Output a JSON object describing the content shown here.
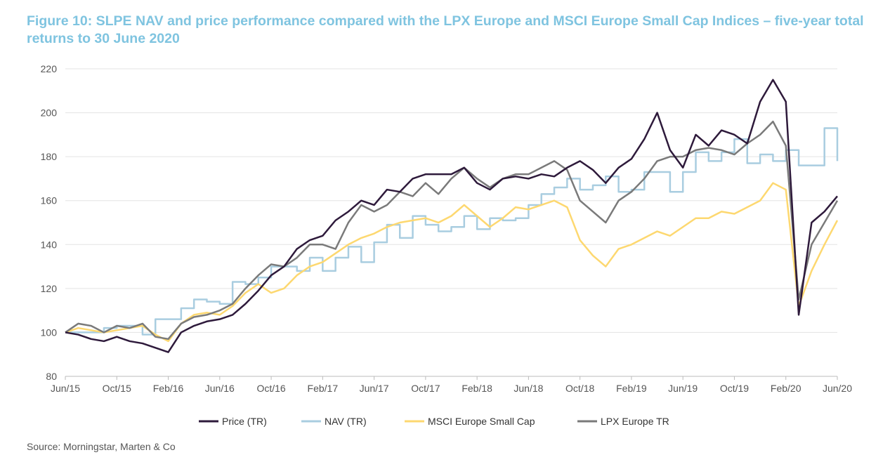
{
  "chart_data": {
    "type": "line",
    "title": "Figure 10: SLPE NAV and price performance compared with the LPX Europe and MSCI Europe Small Cap Indices – five-year total returns to 30 June 2020",
    "source": "Source: Morningstar, Marten & Co",
    "xlabel": "",
    "ylabel": "",
    "ylim": [
      80,
      220
    ],
    "yticks": [
      "80",
      "100",
      "120",
      "140",
      "160",
      "180",
      "200",
      "220"
    ],
    "xticks": [
      "Jun/15",
      "Oct/15",
      "Feb/16",
      "Jun/16",
      "Oct/16",
      "Feb/17",
      "Jun/17",
      "Oct/17",
      "Feb/18",
      "Jun/18",
      "Oct/18",
      "Feb/19",
      "Jun/19",
      "Oct/19",
      "Feb/20",
      "Jun/20"
    ],
    "x_start": "Jun/15",
    "x_step": "monthly",
    "grid": "horizontal",
    "legend": "bottom",
    "series": [
      {
        "name": "Price (TR)",
        "color": "#2e1a3b",
        "style": "line",
        "values": [
          100,
          99,
          97,
          96,
          98,
          96,
          95,
          93,
          91,
          100,
          103,
          105,
          106,
          108,
          113,
          119,
          126,
          130,
          138,
          142,
          144,
          151,
          155,
          160,
          158,
          165,
          164,
          170,
          172,
          172,
          172,
          175,
          168,
          165,
          170,
          171,
          170,
          172,
          171,
          175,
          178,
          174,
          168,
          175,
          179,
          188,
          200,
          183,
          175,
          190,
          185,
          192,
          190,
          186,
          205,
          215,
          205,
          108,
          150,
          155,
          162
        ]
      },
      {
        "name": "NAV (TR)",
        "color": "#a9cde0",
        "style": "step",
        "values": [
          100,
          100,
          100,
          102,
          103,
          103,
          99,
          106,
          106,
          111,
          115,
          114,
          113,
          123,
          122,
          125,
          130,
          130,
          128,
          134,
          128,
          134,
          139,
          132,
          141,
          149,
          143,
          153,
          149,
          146,
          148,
          153,
          147,
          152,
          151,
          152,
          158,
          163,
          166,
          170,
          165,
          167,
          171,
          164,
          165,
          173,
          173,
          164,
          173,
          182,
          178,
          182,
          188,
          177,
          181,
          178,
          183,
          176,
          176,
          193,
          178
        ]
      },
      {
        "name": "MSCI Europe Small Cap",
        "color": "#fdd870",
        "style": "line",
        "values": [
          100,
          102,
          101,
          100,
          101,
          102,
          103,
          99,
          96,
          104,
          108,
          109,
          108,
          112,
          118,
          122,
          118,
          120,
          126,
          130,
          132,
          136,
          140,
          143,
          145,
          148,
          150,
          151,
          152,
          150,
          153,
          158,
          153,
          148,
          152,
          157,
          156,
          158,
          160,
          157,
          142,
          135,
          130,
          138,
          140,
          143,
          146,
          144,
          148,
          152,
          152,
          155,
          154,
          157,
          160,
          168,
          165,
          112,
          128,
          140,
          151
        ]
      },
      {
        "name": "LPX Europe TR",
        "color": "#7a7a7a",
        "style": "line",
        "values": [
          100,
          104,
          103,
          100,
          103,
          102,
          104,
          98,
          97,
          104,
          107,
          108,
          110,
          113,
          120,
          126,
          131,
          130,
          134,
          140,
          140,
          138,
          150,
          158,
          155,
          158,
          164,
          162,
          168,
          163,
          170,
          175,
          170,
          166,
          170,
          172,
          172,
          175,
          178,
          174,
          160,
          155,
          150,
          160,
          164,
          170,
          178,
          180,
          180,
          183,
          184,
          183,
          181,
          186,
          190,
          196,
          185,
          115,
          140,
          150,
          160
        ]
      }
    ]
  }
}
